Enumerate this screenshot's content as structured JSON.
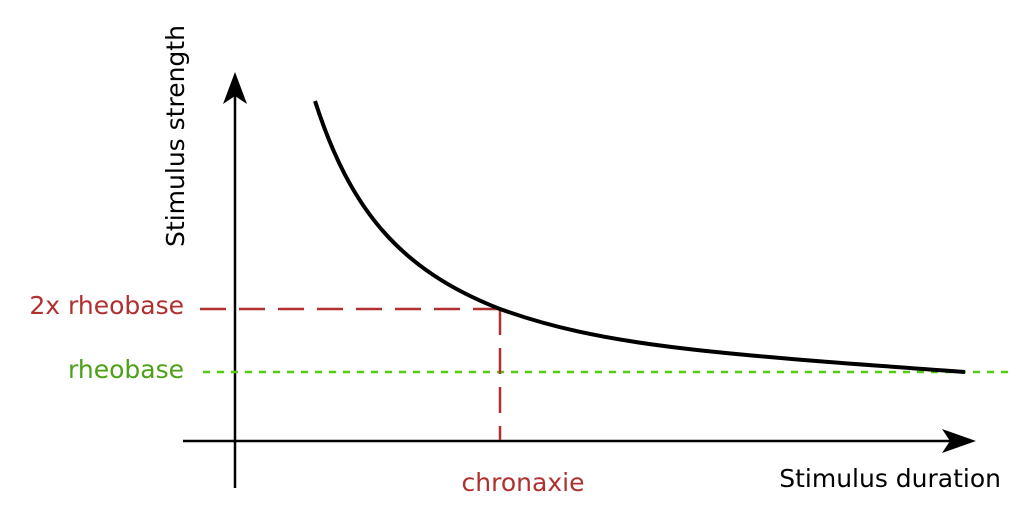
{
  "axes": {
    "y_label": "Stimulus strength",
    "x_label": "Stimulus duration"
  },
  "markers": {
    "two_x_rheobase": {
      "label": "2x rheobase",
      "color": "#b03030"
    },
    "rheobase": {
      "label": "rheobase",
      "color": "#4ea017",
      "line_color": "#55cc11"
    },
    "chronaxie": {
      "label": "chronaxie",
      "color": "#b03030"
    }
  },
  "curve": {
    "name": "strength-duration-curve",
    "color": "#000000"
  }
}
